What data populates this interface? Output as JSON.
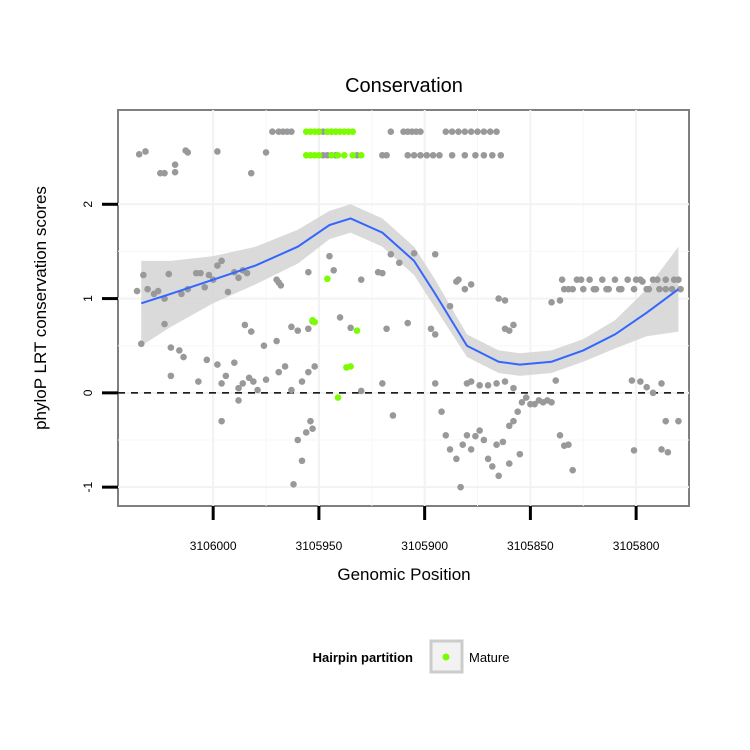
{
  "chart_data": {
    "type": "scatter",
    "title": "Conservation",
    "xlabel": "Genomic Position",
    "ylabel": "phyloP LRT conservation scores",
    "x_reversed": true,
    "xlim": [
      3106045,
      3105775
    ],
    "ylim": [
      -1.2,
      3.0
    ],
    "x_ticks": [
      3106000,
      3105950,
      3105900,
      3105850,
      3105800
    ],
    "x_tick_labels": [
      "3106000",
      "3105950",
      "3105900",
      "3105850",
      "3105800"
    ],
    "y_ticks": [
      -1,
      0,
      1,
      2
    ],
    "y_tick_labels": [
      "-1",
      "0",
      "1",
      "2"
    ],
    "reference_line": {
      "y": 0,
      "style": "dashed"
    },
    "grid": true,
    "legend": {
      "title": "Hairpin partition",
      "position": "bottom",
      "entries": [
        {
          "label": "Mature",
          "color": "#7cfc00"
        }
      ]
    },
    "colors": {
      "other": "#999999",
      "mature": "#7cfc00",
      "smooth": "#3366ff",
      "band": "#d3d3d3"
    },
    "series": [
      {
        "name": "Other",
        "points": [
          [
            3106035,
            2.53
          ],
          [
            3106032,
            2.56
          ],
          [
            3106025,
            2.33
          ],
          [
            3106023,
            2.33
          ],
          [
            3106018,
            2.42
          ],
          [
            3106012,
            2.55
          ],
          [
            3106013,
            2.57
          ],
          [
            3105998,
            2.56
          ],
          [
            3105975,
            2.55
          ],
          [
            3105972,
            2.77
          ],
          [
            3105969,
            2.77
          ],
          [
            3105967,
            2.77
          ],
          [
            3105965,
            2.77
          ],
          [
            3105963,
            2.77
          ],
          [
            3105950,
            2.77
          ],
          [
            3105948,
            2.77
          ],
          [
            3105946,
            2.77
          ],
          [
            3105944,
            2.77
          ],
          [
            3105942,
            2.77
          ],
          [
            3105948,
            2.52
          ],
          [
            3105946,
            2.52
          ],
          [
            3105944,
            2.52
          ],
          [
            3105942,
            2.52
          ],
          [
            3105932,
            2.52
          ],
          [
            3105920,
            2.52
          ],
          [
            3105918,
            2.52
          ],
          [
            3105916,
            2.77
          ],
          [
            3105910,
            2.77
          ],
          [
            3105908,
            2.77
          ],
          [
            3105906,
            2.77
          ],
          [
            3105904,
            2.77
          ],
          [
            3105902,
            2.77
          ],
          [
            3105908,
            2.52
          ],
          [
            3105905,
            2.52
          ],
          [
            3105902,
            2.52
          ],
          [
            3105899,
            2.52
          ],
          [
            3105896,
            2.52
          ],
          [
            3105890,
            2.77
          ],
          [
            3105887,
            2.77
          ],
          [
            3105884,
            2.77
          ],
          [
            3105881,
            2.77
          ],
          [
            3105878,
            2.77
          ],
          [
            3105875,
            2.77
          ],
          [
            3105872,
            2.77
          ],
          [
            3105869,
            2.77
          ],
          [
            3105866,
            2.77
          ],
          [
            3105893,
            2.52
          ],
          [
            3105887,
            2.52
          ],
          [
            3105881,
            2.52
          ],
          [
            3105876,
            2.52
          ],
          [
            3105872,
            2.52
          ],
          [
            3105868,
            2.52
          ],
          [
            3105864,
            2.52
          ],
          [
            3106018,
            2.34
          ],
          [
            3105982,
            2.33
          ],
          [
            3106036,
            1.08
          ],
          [
            3106033,
            1.25
          ],
          [
            3106031,
            1.1
          ],
          [
            3106028,
            1.05
          ],
          [
            3106026,
            1.08
          ],
          [
            3106023,
            1.0
          ],
          [
            3106021,
            1.26
          ],
          [
            3106015,
            1.05
          ],
          [
            3106012,
            1.1
          ],
          [
            3106008,
            1.27
          ],
          [
            3106006,
            1.27
          ],
          [
            3106004,
            1.12
          ],
          [
            3106002,
            1.25
          ],
          [
            3106000,
            1.2
          ],
          [
            3105998,
            1.35
          ],
          [
            3105996,
            1.4
          ],
          [
            3105993,
            1.07
          ],
          [
            3105990,
            1.28
          ],
          [
            3105988,
            1.22
          ],
          [
            3105986,
            1.3
          ],
          [
            3105984,
            1.27
          ],
          [
            3105970,
            1.2
          ],
          [
            3105969,
            1.17
          ],
          [
            3105968,
            1.14
          ],
          [
            3105955,
            1.28
          ],
          [
            3105945,
            1.45
          ],
          [
            3105943,
            1.3
          ],
          [
            3105930,
            1.2
          ],
          [
            3105922,
            1.28
          ],
          [
            3105920,
            1.27
          ],
          [
            3105916,
            1.47
          ],
          [
            3105912,
            1.38
          ],
          [
            3105905,
            1.48
          ],
          [
            3105895,
            1.47
          ],
          [
            3106034,
            0.52
          ],
          [
            3106023,
            0.73
          ],
          [
            3106020,
            0.48
          ],
          [
            3106016,
            0.45
          ],
          [
            3106014,
            0.38
          ],
          [
            3105985,
            0.72
          ],
          [
            3105982,
            0.65
          ],
          [
            3105976,
            0.5
          ],
          [
            3105970,
            0.55
          ],
          [
            3105963,
            0.7
          ],
          [
            3105960,
            0.66
          ],
          [
            3105955,
            0.68
          ],
          [
            3105953,
            0.76
          ],
          [
            3105940,
            0.8
          ],
          [
            3105935,
            0.69
          ],
          [
            3105918,
            0.68
          ],
          [
            3105908,
            0.74
          ],
          [
            3105897,
            0.68
          ],
          [
            3105895,
            0.62
          ],
          [
            3106020,
            0.18
          ],
          [
            3106007,
            0.12
          ],
          [
            3106003,
            0.35
          ],
          [
            3105998,
            0.3
          ],
          [
            3105996,
            0.1
          ],
          [
            3105994,
            0.18
          ],
          [
            3105990,
            0.32
          ],
          [
            3105988,
            0.05
          ],
          [
            3105986,
            0.1
          ],
          [
            3105983,
            0.16
          ],
          [
            3105981,
            0.12
          ],
          [
            3105979,
            0.03
          ],
          [
            3105975,
            0.14
          ],
          [
            3105969,
            0.22
          ],
          [
            3105966,
            0.28
          ],
          [
            3105963,
            0.03
          ],
          [
            3105958,
            0.12
          ],
          [
            3105955,
            0.22
          ],
          [
            3105952,
            0.28
          ],
          [
            3105930,
            0.02
          ],
          [
            3105920,
            0.1
          ],
          [
            3105996,
            -0.3
          ],
          [
            3105988,
            -0.08
          ],
          [
            3105960,
            -0.5
          ],
          [
            3105956,
            -0.42
          ],
          [
            3105954,
            -0.3
          ],
          [
            3105953,
            -0.38
          ],
          [
            3105958,
            -0.72
          ],
          [
            3105962,
            -0.97
          ],
          [
            3105915,
            -0.24
          ],
          [
            3105895,
            0.1
          ],
          [
            3105892,
            -0.2
          ],
          [
            3105890,
            -0.45
          ],
          [
            3105888,
            -0.6
          ],
          [
            3105885,
            -0.7
          ],
          [
            3105883,
            -1.0
          ],
          [
            3105882,
            -0.55
          ],
          [
            3105880,
            -0.45
          ],
          [
            3105878,
            -0.6
          ],
          [
            3105876,
            -0.46
          ],
          [
            3105874,
            -0.4
          ],
          [
            3105872,
            -0.5
          ],
          [
            3105870,
            -0.7
          ],
          [
            3105868,
            -0.78
          ],
          [
            3105866,
            -0.55
          ],
          [
            3105865,
            -0.88
          ],
          [
            3105863,
            -0.52
          ],
          [
            3105860,
            -0.35
          ],
          [
            3105858,
            -0.3
          ],
          [
            3105856,
            -0.2
          ],
          [
            3105854,
            -0.1
          ],
          [
            3105852,
            -0.05
          ],
          [
            3105850,
            -0.12
          ],
          [
            3105848,
            -0.12
          ],
          [
            3105846,
            -0.08
          ],
          [
            3105844,
            -0.1
          ],
          [
            3105842,
            -0.08
          ],
          [
            3105840,
            -0.1
          ],
          [
            3105838,
            0.13
          ],
          [
            3105836,
            -0.45
          ],
          [
            3105834,
            -0.56
          ],
          [
            3105832,
            -0.55
          ],
          [
            3105830,
            -0.82
          ],
          [
            3105855,
            -0.65
          ],
          [
            3105860,
            -0.75
          ],
          [
            3105880,
            0.1
          ],
          [
            3105878,
            0.12
          ],
          [
            3105874,
            0.08
          ],
          [
            3105870,
            0.08
          ],
          [
            3105866,
            0.1
          ],
          [
            3105862,
            0.12
          ],
          [
            3105858,
            0.05
          ],
          [
            3105862,
            0.68
          ],
          [
            3105860,
            0.66
          ],
          [
            3105858,
            0.72
          ],
          [
            3105865,
            1.0
          ],
          [
            3105862,
            0.98
          ],
          [
            3105840,
            0.96
          ],
          [
            3105836,
            0.98
          ],
          [
            3105888,
            0.92
          ],
          [
            3105885,
            1.18
          ],
          [
            3105884,
            1.2
          ],
          [
            3105881,
            1.1
          ],
          [
            3105878,
            1.15
          ],
          [
            3105835,
            1.2
          ],
          [
            3105832,
            1.1
          ],
          [
            3105828,
            1.2
          ],
          [
            3105825,
            1.1
          ],
          [
            3105822,
            1.2
          ],
          [
            3105819,
            1.1
          ],
          [
            3105816,
            1.2
          ],
          [
            3105813,
            1.1
          ],
          [
            3105810,
            1.2
          ],
          [
            3105807,
            1.1
          ],
          [
            3105804,
            1.2
          ],
          [
            3105801,
            1.1
          ],
          [
            3105798,
            1.2
          ],
          [
            3105795,
            1.1
          ],
          [
            3105792,
            1.2
          ],
          [
            3105789,
            1.1
          ],
          [
            3105786,
            1.2
          ],
          [
            3105783,
            1.1
          ],
          [
            3105780,
            1.2
          ],
          [
            3105779,
            1.1
          ],
          [
            3105834,
            1.1
          ],
          [
            3105830,
            1.1
          ],
          [
            3105826,
            1.2
          ],
          [
            3105820,
            1.1
          ],
          [
            3105814,
            1.1
          ],
          [
            3105808,
            1.1
          ],
          [
            3105800,
            1.2
          ],
          [
            3105797,
            1.18
          ],
          [
            3105794,
            1.1
          ],
          [
            3105790,
            1.2
          ],
          [
            3105786,
            1.1
          ],
          [
            3105782,
            1.2
          ],
          [
            3105802,
            0.13
          ],
          [
            3105798,
            0.12
          ],
          [
            3105795,
            0.06
          ],
          [
            3105792,
            0.0
          ],
          [
            3105788,
            0.1
          ],
          [
            3105786,
            -0.3
          ],
          [
            3105801,
            -0.61
          ],
          [
            3105788,
            -0.6
          ],
          [
            3105785,
            -0.63
          ],
          [
            3105780,
            -0.3
          ]
        ]
      },
      {
        "name": "Mature",
        "points": [
          [
            3105956,
            2.77
          ],
          [
            3105954,
            2.77
          ],
          [
            3105952,
            2.77
          ],
          [
            3105950,
            2.77
          ],
          [
            3105946,
            2.77
          ],
          [
            3105944,
            2.77
          ],
          [
            3105942,
            2.77
          ],
          [
            3105940,
            2.77
          ],
          [
            3105938,
            2.77
          ],
          [
            3105936,
            2.77
          ],
          [
            3105934,
            2.77
          ],
          [
            3105956,
            2.52
          ],
          [
            3105954,
            2.52
          ],
          [
            3105952,
            2.52
          ],
          [
            3105950,
            2.52
          ],
          [
            3105941,
            2.52
          ],
          [
            3105938,
            2.52
          ],
          [
            3105930,
            2.52
          ],
          [
            3105934,
            2.52
          ],
          [
            3105944,
            2.52
          ],
          [
            3105946,
            1.21
          ],
          [
            3105953,
            0.77
          ],
          [
            3105952,
            0.75
          ],
          [
            3105932,
            0.66
          ],
          [
            3105937,
            0.27
          ],
          [
            3105935,
            0.28
          ],
          [
            3105941,
            -0.05
          ]
        ]
      }
    ],
    "smooth_line": {
      "x": [
        3106034,
        3106020,
        3106000,
        3105980,
        3105960,
        3105945,
        3105935,
        3105920,
        3105905,
        3105895,
        3105880,
        3105865,
        3105855,
        3105840,
        3105825,
        3105810,
        3105795,
        3105780
      ],
      "y": [
        0.95,
        1.05,
        1.2,
        1.35,
        1.55,
        1.78,
        1.85,
        1.7,
        1.4,
        1.05,
        0.5,
        0.33,
        0.3,
        0.33,
        0.45,
        0.62,
        0.85,
        1.1
      ],
      "band_half_width": [
        0.45,
        0.35,
        0.25,
        0.2,
        0.18,
        0.15,
        0.15,
        0.15,
        0.15,
        0.15,
        0.12,
        0.12,
        0.12,
        0.12,
        0.12,
        0.15,
        0.25,
        0.45
      ]
    }
  }
}
